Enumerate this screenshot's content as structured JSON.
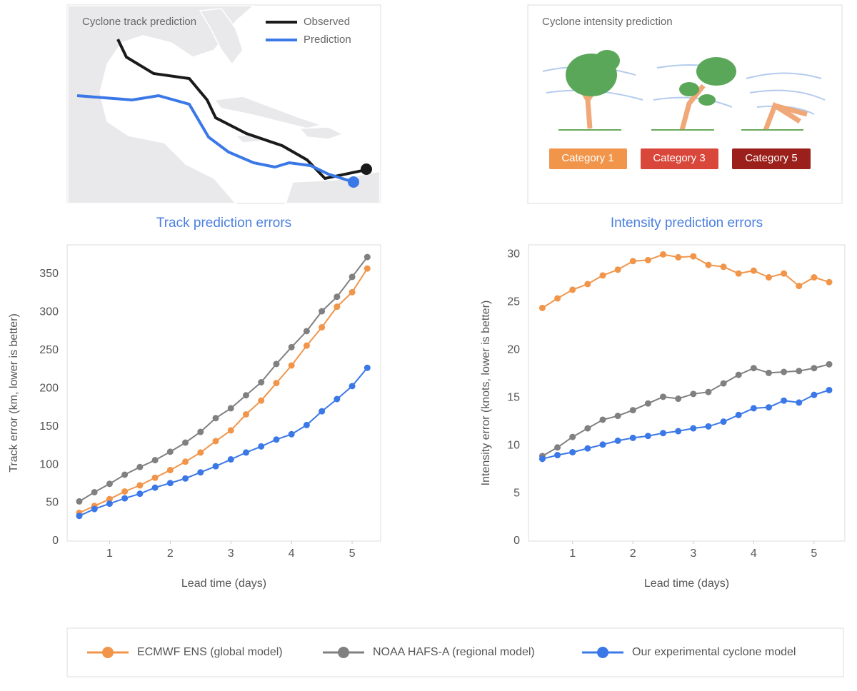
{
  "panels": {
    "track": {
      "title": "Cyclone track prediction",
      "legend": [
        "Observed",
        "Prediction"
      ]
    },
    "intensity": {
      "title": "Cyclone intensity prediction",
      "categories": [
        "Category 1",
        "Category 3",
        "Category 5"
      ]
    }
  },
  "chart_data": [
    {
      "type": "line",
      "title": "Track prediction errors",
      "x_label": "Lead time (days)",
      "y_label": "Track error (km, lower is better)",
      "x": [
        0.5,
        0.75,
        1,
        1.25,
        1.5,
        1.75,
        2,
        2.25,
        2.5,
        2.75,
        3,
        3.25,
        3.5,
        3.75,
        4,
        4.25,
        4.5,
        4.75,
        5,
        5.25
      ],
      "series": [
        {
          "name": "ECMWF ENS (global model)",
          "color": "#f0954a",
          "values": [
            37,
            46,
            55,
            65,
            73,
            83,
            93,
            104,
            116,
            131,
            145,
            166,
            184,
            207,
            230,
            256,
            280,
            307,
            326,
            357
          ]
        },
        {
          "name": "NOAA HAFS-A (regional model)",
          "color": "#808080",
          "values": [
            52,
            64,
            75,
            87,
            97,
            106,
            117,
            129,
            143,
            161,
            174,
            191,
            208,
            232,
            254,
            275,
            301,
            320,
            346,
            372
          ]
        },
        {
          "name": "Our experimental cyclone model",
          "color": "#3b78e7",
          "values": [
            33,
            42,
            49,
            56,
            62,
            70,
            76,
            82,
            90,
            98,
            107,
            116,
            124,
            133,
            140,
            152,
            170,
            186,
            203,
            227
          ]
        }
      ],
      "xlim": [
        0.3,
        5.47
      ],
      "xticks": [
        1,
        2,
        3,
        4,
        5
      ],
      "ylim": [
        0,
        388
      ],
      "yticks": [
        0,
        50,
        100,
        150,
        200,
        250,
        300,
        350
      ],
      "grid": false
    },
    {
      "type": "line",
      "title": "Intensity prediction errors",
      "x_label": "Lead time (days)",
      "y_label": "Intensity error (knots, lower is better)",
      "x": [
        0.5,
        0.75,
        1,
        1.25,
        1.5,
        1.75,
        2,
        2.25,
        2.5,
        2.75,
        3,
        3.25,
        3.5,
        3.75,
        4,
        4.25,
        4.5,
        4.75,
        5,
        5.25
      ],
      "series": [
        {
          "name": "ECMWF ENS (global model)",
          "color": "#f0954a",
          "values": [
            24.4,
            25.4,
            26.3,
            26.9,
            27.8,
            28.4,
            29.3,
            29.4,
            30.0,
            29.7,
            29.8,
            28.9,
            28.7,
            28.0,
            28.3,
            27.6,
            28.0,
            26.7,
            27.6,
            27.1
          ]
        },
        {
          "name": "NOAA HAFS-A (regional model)",
          "color": "#808080",
          "values": [
            8.9,
            9.8,
            10.9,
            11.8,
            12.7,
            13.1,
            13.7,
            14.4,
            15.1,
            14.9,
            15.4,
            15.6,
            16.5,
            17.4,
            18.1,
            17.6,
            17.7,
            17.8,
            18.1,
            18.5
          ]
        },
        {
          "name": "Our experimental cyclone model",
          "color": "#3b78e7",
          "values": [
            8.6,
            9.0,
            9.3,
            9.7,
            10.1,
            10.5,
            10.8,
            11.0,
            11.3,
            11.5,
            11.8,
            12.0,
            12.5,
            13.2,
            13.9,
            14.0,
            14.7,
            14.5,
            15.3,
            15.8
          ]
        }
      ],
      "xlim": [
        0.27,
        5.51
      ],
      "xticks": [
        1,
        2,
        3,
        4,
        5
      ],
      "ylim": [
        0,
        31
      ],
      "yticks": [
        0,
        5,
        10,
        15,
        20,
        25,
        30
      ],
      "grid": false
    }
  ]
}
